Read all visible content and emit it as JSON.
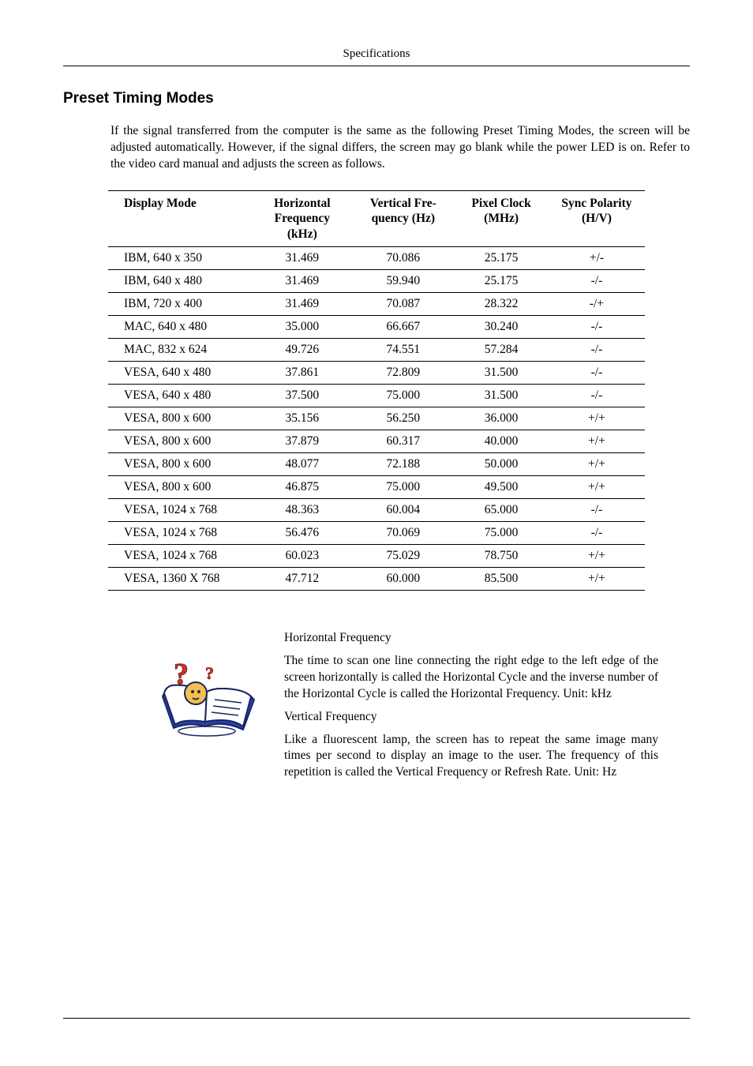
{
  "running_head": "Specifications",
  "section_title": "Preset Timing Modes",
  "intro": "If the signal transferred from the computer is the same as the following Preset Timing Modes, the screen will be adjusted automatically. However, if the signal differs, the screen may go blank while the power LED is on. Refer to the video card manual and adjusts the screen as follows.",
  "table": {
    "columns": [
      "Display Mode",
      "Horizontal Frequency (kHz)",
      "Vertical Frequency (Hz)",
      "Pixel Clock (MHz)",
      "Sync Polarity (H/V)"
    ],
    "col_widths": [
      "190px",
      "120px",
      "130px",
      "120px",
      "120px"
    ],
    "rows": [
      [
        "IBM, 640 x 350",
        "31.469",
        "70.086",
        "25.175",
        "+/-"
      ],
      [
        "IBM, 640 x 480",
        "31.469",
        "59.940",
        "25.175",
        "-/-"
      ],
      [
        "IBM, 720 x 400",
        "31.469",
        "70.087",
        "28.322",
        "-/+"
      ],
      [
        "MAC, 640 x 480",
        "35.000",
        "66.667",
        "30.240",
        "-/-"
      ],
      [
        "MAC, 832 x 624",
        "49.726",
        "74.551",
        "57.284",
        "-/-"
      ],
      [
        "VESA, 640 x 480",
        "37.861",
        "72.809",
        "31.500",
        "-/-"
      ],
      [
        "VESA, 640 x 480",
        "37.500",
        "75.000",
        "31.500",
        "-/-"
      ],
      [
        "VESA, 800 x 600",
        "35.156",
        "56.250",
        "36.000",
        "+/+"
      ],
      [
        "VESA, 800 x 600",
        "37.879",
        "60.317",
        "40.000",
        "+/+"
      ],
      [
        "VESA, 800 x 600",
        "48.077",
        "72.188",
        "50.000",
        "+/+"
      ],
      [
        "VESA, 800 x 600",
        "46.875",
        "75.000",
        "49.500",
        "+/+"
      ],
      [
        "VESA, 1024 x 768",
        "48.363",
        "60.004",
        "65.000",
        "-/-"
      ],
      [
        "VESA, 1024 x 768",
        "56.476",
        "70.069",
        "75.000",
        "-/-"
      ],
      [
        "VESA, 1024 x 768",
        "60.023",
        "75.029",
        "78.750",
        "+/+"
      ],
      [
        "VESA, 1360 X 768",
        "47.712",
        "60.000",
        "85.500",
        "+/+"
      ]
    ]
  },
  "freq": {
    "h_title": "Horizontal Frequency",
    "h_body": "The time to scan one line connecting the right edge to the left edge of the screen horizontally is called the Horizontal Cycle and the inverse number of the Horizontal Cycle is called the Horizontal Frequency. Unit: kHz",
    "v_title": "Vertical Frequency",
    "v_body": "Like a fluorescent lamp, the screen has to repeat the same image many times per second to display an image to the user. The frequency of this repetition is called the Vertical Frequency or Refresh Rate. Unit: Hz"
  },
  "icon": {
    "book_fill": "#2b3fb0",
    "head_fill": "#f3c14b",
    "face_fill": "#d9a030",
    "qmark_fill": "#c8342c",
    "page_fill": "#ffffff",
    "stroke": "#1a2560"
  }
}
